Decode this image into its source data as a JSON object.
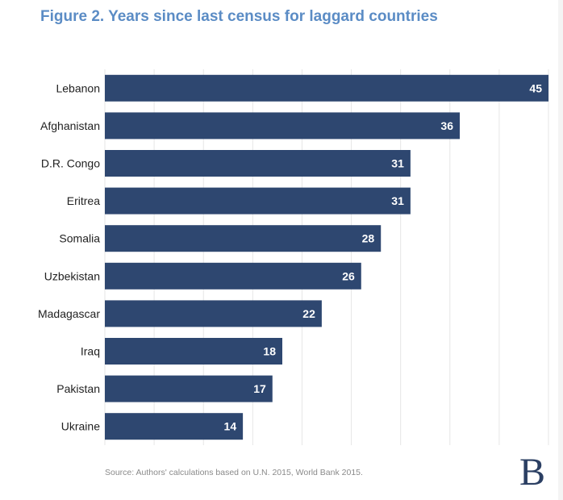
{
  "title": "Figure 2. Years since last census for laggard countries",
  "source": "Source:  Authors' calculations based on U.N. 2015, World Bank 2015.",
  "logo": "B",
  "colors": {
    "bar": "#2e4770",
    "title": "#5b8cc5",
    "grid": "#e6e6e6"
  },
  "chart_data": {
    "type": "bar",
    "orientation": "horizontal",
    "title": "Figure 2. Years since last census for laggard countries",
    "categories": [
      "Lebanon",
      "Afghanistan",
      "D.R. Congo",
      "Eritrea",
      "Somalia",
      "Uzbekistan",
      "Madagascar",
      "Iraq",
      "Pakistan",
      "Ukraine"
    ],
    "values": [
      45,
      36,
      31,
      31,
      28,
      26,
      22,
      18,
      17,
      14
    ],
    "xlabel": "",
    "ylabel": "",
    "xlim": [
      0,
      45
    ],
    "grid": true,
    "data_labels": true
  }
}
